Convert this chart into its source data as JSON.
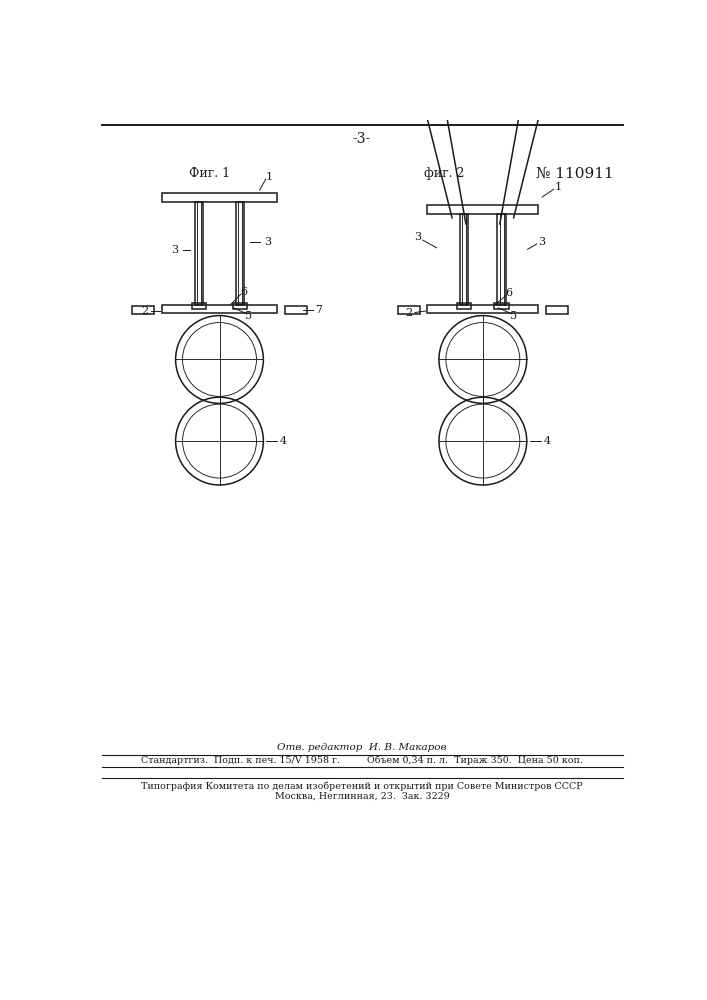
{
  "page_number": "-3-",
  "patent_number": "№ 110911",
  "fig1_label": "Фиг. 1",
  "fig2_label": "фиг. 2",
  "footer_line1": "Отв. редактор  И. В. Макаров",
  "footer_line2": "Стандартгиз.  Подп. к печ. 15/V 1958 г.         Объем 0,34 п. л.  Тираж 350.  Цена 50 коп.",
  "footer_line3": "Типография Комитета по делам изобретений и открытий при Совете Министров СССР",
  "footer_line4": "Москва, Неглинная, 23.  Зак. 3229",
  "bg_color": "#ffffff",
  "line_color": "#1a1a1a"
}
